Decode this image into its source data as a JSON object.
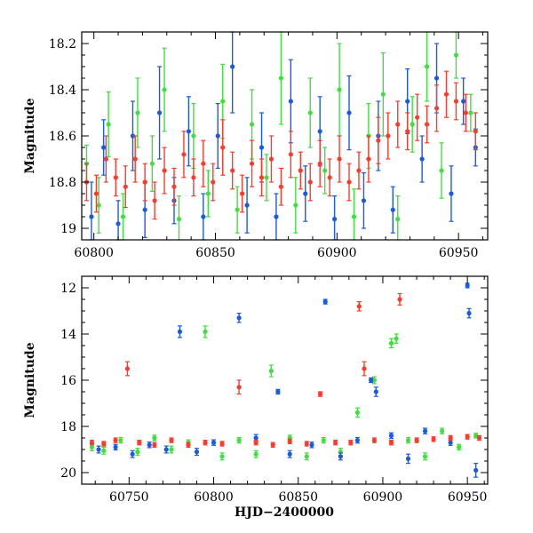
{
  "chart_data": [
    {
      "type": "scatter",
      "panel": "top",
      "title": "",
      "xlabel": "",
      "ylabel": "Magnitude",
      "xlim": [
        60795,
        60962
      ],
      "ylim": [
        19.05,
        18.15
      ],
      "y_inverted": true,
      "x_ticks": [
        60800,
        60850,
        60900,
        60950
      ],
      "y_ticks": [
        18.2,
        18.4,
        18.6,
        18.8,
        19.0
      ],
      "y_tick_labels": [
        "18.2",
        "18.4",
        "18.6",
        "18.8",
        "19"
      ],
      "series": [
        {
          "name": "green",
          "color": "#3de03d",
          "points": [
            [
              60797,
              18.72,
              0.08
            ],
            [
              60802,
              18.9,
              0.12
            ],
            [
              60806,
              18.55,
              0.14
            ],
            [
              60812,
              18.95,
              0.1
            ],
            [
              60818,
              18.5,
              0.15
            ],
            [
              60824,
              18.72,
              0.12
            ],
            [
              60829,
              18.4,
              0.18
            ],
            [
              60835,
              18.96,
              0.1
            ],
            [
              60841,
              18.6,
              0.14
            ],
            [
              60847,
              18.85,
              0.1
            ],
            [
              60853,
              18.45,
              0.16
            ],
            [
              60859,
              18.92,
              0.1
            ],
            [
              60865,
              18.55,
              0.15
            ],
            [
              60871,
              18.78,
              0.1
            ],
            [
              60877,
              18.35,
              0.2
            ],
            [
              60883,
              18.9,
              0.12
            ],
            [
              60889,
              18.5,
              0.15
            ],
            [
              60895,
              18.75,
              0.1
            ],
            [
              60901,
              18.4,
              0.2
            ],
            [
              60907,
              18.95,
              0.12
            ],
            [
              60913,
              18.6,
              0.14
            ],
            [
              60919,
              18.42,
              0.18
            ],
            [
              60925,
              18.96,
              0.1
            ],
            [
              60931,
              18.55,
              0.12
            ],
            [
              60937,
              18.3,
              0.15
            ],
            [
              60943,
              18.75,
              0.12
            ],
            [
              60949,
              18.25,
              0.1
            ],
            [
              60955,
              18.5,
              0.08
            ]
          ]
        },
        {
          "name": "blue",
          "color": "#1a5ae0",
          "points": [
            [
              60799,
              18.95,
              0.15
            ],
            [
              60804,
              18.65,
              0.12
            ],
            [
              60810,
              18.98,
              0.1
            ],
            [
              60816,
              18.6,
              0.15
            ],
            [
              60821,
              18.92,
              0.12
            ],
            [
              60827,
              18.5,
              0.2
            ],
            [
              60833,
              18.88,
              0.1
            ],
            [
              60839,
              18.58,
              0.15
            ],
            [
              60845,
              18.95,
              0.1
            ],
            [
              60851,
              18.6,
              0.14
            ],
            [
              60857,
              18.3,
              0.2
            ],
            [
              60863,
              18.9,
              0.12
            ],
            [
              60869,
              18.65,
              0.15
            ],
            [
              60875,
              18.95,
              0.1
            ],
            [
              60881,
              18.45,
              0.18
            ],
            [
              60887,
              18.85,
              0.12
            ],
            [
              60893,
              18.58,
              0.15
            ],
            [
              60899,
              18.96,
              0.1
            ],
            [
              60905,
              18.5,
              0.16
            ],
            [
              60911,
              18.88,
              0.12
            ],
            [
              60917,
              18.6,
              0.15
            ],
            [
              60923,
              18.92,
              0.1
            ],
            [
              60929,
              18.45,
              0.14
            ],
            [
              60935,
              18.7,
              0.1
            ],
            [
              60941,
              18.35,
              0.15
            ],
            [
              60947,
              18.85,
              0.12
            ],
            [
              60952,
              18.45,
              0.1
            ],
            [
              60957,
              18.65,
              0.08
            ]
          ]
        },
        {
          "name": "red",
          "color": "#ff3a2a",
          "points": [
            [
              60797,
              18.8,
              0.08
            ],
            [
              60801,
              18.85,
              0.08
            ],
            [
              60805,
              18.7,
              0.1
            ],
            [
              60809,
              18.78,
              0.08
            ],
            [
              60813,
              18.82,
              0.09
            ],
            [
              60817,
              18.7,
              0.1
            ],
            [
              60821,
              18.8,
              0.08
            ],
            [
              60825,
              18.88,
              0.08
            ],
            [
              60829,
              18.75,
              0.1
            ],
            [
              60833,
              18.82,
              0.08
            ],
            [
              60837,
              18.68,
              0.1
            ],
            [
              60841,
              18.78,
              0.08
            ],
            [
              60845,
              18.72,
              0.1
            ],
            [
              60849,
              18.8,
              0.08
            ],
            [
              60853,
              18.65,
              0.12
            ],
            [
              60857,
              18.75,
              0.08
            ],
            [
              60861,
              18.85,
              0.08
            ],
            [
              60865,
              18.72,
              0.1
            ],
            [
              60869,
              18.78,
              0.08
            ],
            [
              60873,
              18.7,
              0.1
            ],
            [
              60877,
              18.82,
              0.08
            ],
            [
              60881,
              18.68,
              0.1
            ],
            [
              60885,
              18.75,
              0.08
            ],
            [
              60889,
              18.8,
              0.08
            ],
            [
              60893,
              18.72,
              0.1
            ],
            [
              60897,
              18.78,
              0.08
            ],
            [
              60901,
              18.7,
              0.1
            ],
            [
              60905,
              18.8,
              0.08
            ],
            [
              60909,
              18.75,
              0.08
            ],
            [
              60913,
              18.7,
              0.1
            ],
            [
              60917,
              18.62,
              0.1
            ],
            [
              60921,
              18.6,
              0.1
            ],
            [
              60925,
              18.55,
              0.1
            ],
            [
              60929,
              18.58,
              0.08
            ],
            [
              60933,
              18.52,
              0.1
            ],
            [
              60937,
              18.55,
              0.08
            ],
            [
              60941,
              18.48,
              0.1
            ],
            [
              60945,
              18.42,
              0.1
            ],
            [
              60949,
              18.45,
              0.08
            ],
            [
              60953,
              18.5,
              0.08
            ],
            [
              60957,
              18.58,
              0.08
            ]
          ]
        }
      ]
    },
    {
      "type": "scatter",
      "panel": "bottom",
      "title": "",
      "xlabel": "HJD−2400000",
      "ylabel": "Magnitude",
      "xlim": [
        60722,
        60962
      ],
      "ylim": [
        20.5,
        11.5
      ],
      "y_inverted": true,
      "x_ticks": [
        60750,
        60800,
        60850,
        60900,
        60950
      ],
      "y_ticks": [
        12,
        14,
        16,
        18,
        20
      ],
      "series": [
        {
          "name": "green",
          "color": "#3de03d",
          "points": [
            [
              60728,
              18.9,
              0.15
            ],
            [
              60735,
              19.05,
              0.15
            ],
            [
              60745,
              18.6,
              0.12
            ],
            [
              60755,
              19.1,
              0.15
            ],
            [
              60765,
              18.5,
              0.12
            ],
            [
              60775,
              19.0,
              0.15
            ],
            [
              60785,
              18.7,
              0.12
            ],
            [
              60795,
              13.9,
              0.25
            ],
            [
              60805,
              19.3,
              0.15
            ],
            [
              60815,
              18.6,
              0.12
            ],
            [
              60825,
              19.2,
              0.15
            ],
            [
              60834,
              15.6,
              0.25
            ],
            [
              60845,
              18.5,
              0.12
            ],
            [
              60855,
              19.3,
              0.15
            ],
            [
              60865,
              18.6,
              0.12
            ],
            [
              60875,
              19.1,
              0.15
            ],
            [
              60885,
              17.4,
              0.2
            ],
            [
              60895,
              16.0,
              0.15
            ],
            [
              60905,
              14.4,
              0.2
            ],
            [
              60908,
              14.2,
              0.2
            ],
            [
              60915,
              18.6,
              0.12
            ],
            [
              60925,
              19.3,
              0.15
            ],
            [
              60935,
              18.2,
              0.12
            ],
            [
              60945,
              18.9,
              0.12
            ],
            [
              60955,
              18.4,
              0.1
            ]
          ]
        },
        {
          "name": "blue",
          "color": "#1a5ae0",
          "points": [
            [
              60732,
              19.0,
              0.15
            ],
            [
              60742,
              18.9,
              0.12
            ],
            [
              60752,
              19.2,
              0.15
            ],
            [
              60762,
              18.8,
              0.12
            ],
            [
              60772,
              19.0,
              0.15
            ],
            [
              60780,
              13.9,
              0.25
            ],
            [
              60790,
              19.1,
              0.15
            ],
            [
              60800,
              18.7,
              0.12
            ],
            [
              60815,
              13.3,
              0.2
            ],
            [
              60825,
              18.5,
              0.15
            ],
            [
              60838,
              16.5,
              0.1
            ],
            [
              60845,
              19.2,
              0.15
            ],
            [
              60858,
              18.8,
              0.12
            ],
            [
              60866,
              12.6,
              0.1
            ],
            [
              60875,
              19.3,
              0.15
            ],
            [
              60885,
              18.6,
              0.12
            ],
            [
              60893,
              16.0,
              0.1
            ],
            [
              60896,
              16.5,
              0.2
            ],
            [
              60905,
              18.4,
              0.12
            ],
            [
              60915,
              19.4,
              0.2
            ],
            [
              60925,
              18.2,
              0.12
            ],
            [
              60940,
              18.7,
              0.12
            ],
            [
              60950,
              11.9,
              0.1
            ],
            [
              60951,
              13.1,
              0.2
            ],
            [
              60955,
              19.9,
              0.3
            ]
          ]
        },
        {
          "name": "red",
          "color": "#ff3a2a",
          "points": [
            [
              60728,
              18.7,
              0.1
            ],
            [
              60735,
              18.75,
              0.1
            ],
            [
              60742,
              18.6,
              0.1
            ],
            [
              60749,
              15.5,
              0.3
            ],
            [
              60756,
              18.7,
              0.1
            ],
            [
              60765,
              18.8,
              0.1
            ],
            [
              60775,
              18.6,
              0.1
            ],
            [
              60785,
              18.8,
              0.1
            ],
            [
              60795,
              18.7,
              0.1
            ],
            [
              60805,
              18.75,
              0.1
            ],
            [
              60815,
              16.3,
              0.3
            ],
            [
              60825,
              18.7,
              0.1
            ],
            [
              60835,
              18.8,
              0.1
            ],
            [
              60845,
              18.65,
              0.1
            ],
            [
              60855,
              18.75,
              0.1
            ],
            [
              60863,
              16.6,
              0.1
            ],
            [
              60872,
              18.7,
              0.1
            ],
            [
              60881,
              18.7,
              0.1
            ],
            [
              60886,
              12.8,
              0.2
            ],
            [
              60889,
              15.5,
              0.3
            ],
            [
              60895,
              18.6,
              0.1
            ],
            [
              60905,
              18.7,
              0.1
            ],
            [
              60910,
              12.5,
              0.25
            ],
            [
              60920,
              18.6,
              0.1
            ],
            [
              60930,
              18.55,
              0.1
            ],
            [
              60940,
              18.5,
              0.1
            ],
            [
              60950,
              18.45,
              0.1
            ],
            [
              60957,
              18.5,
              0.1
            ]
          ]
        }
      ]
    }
  ]
}
